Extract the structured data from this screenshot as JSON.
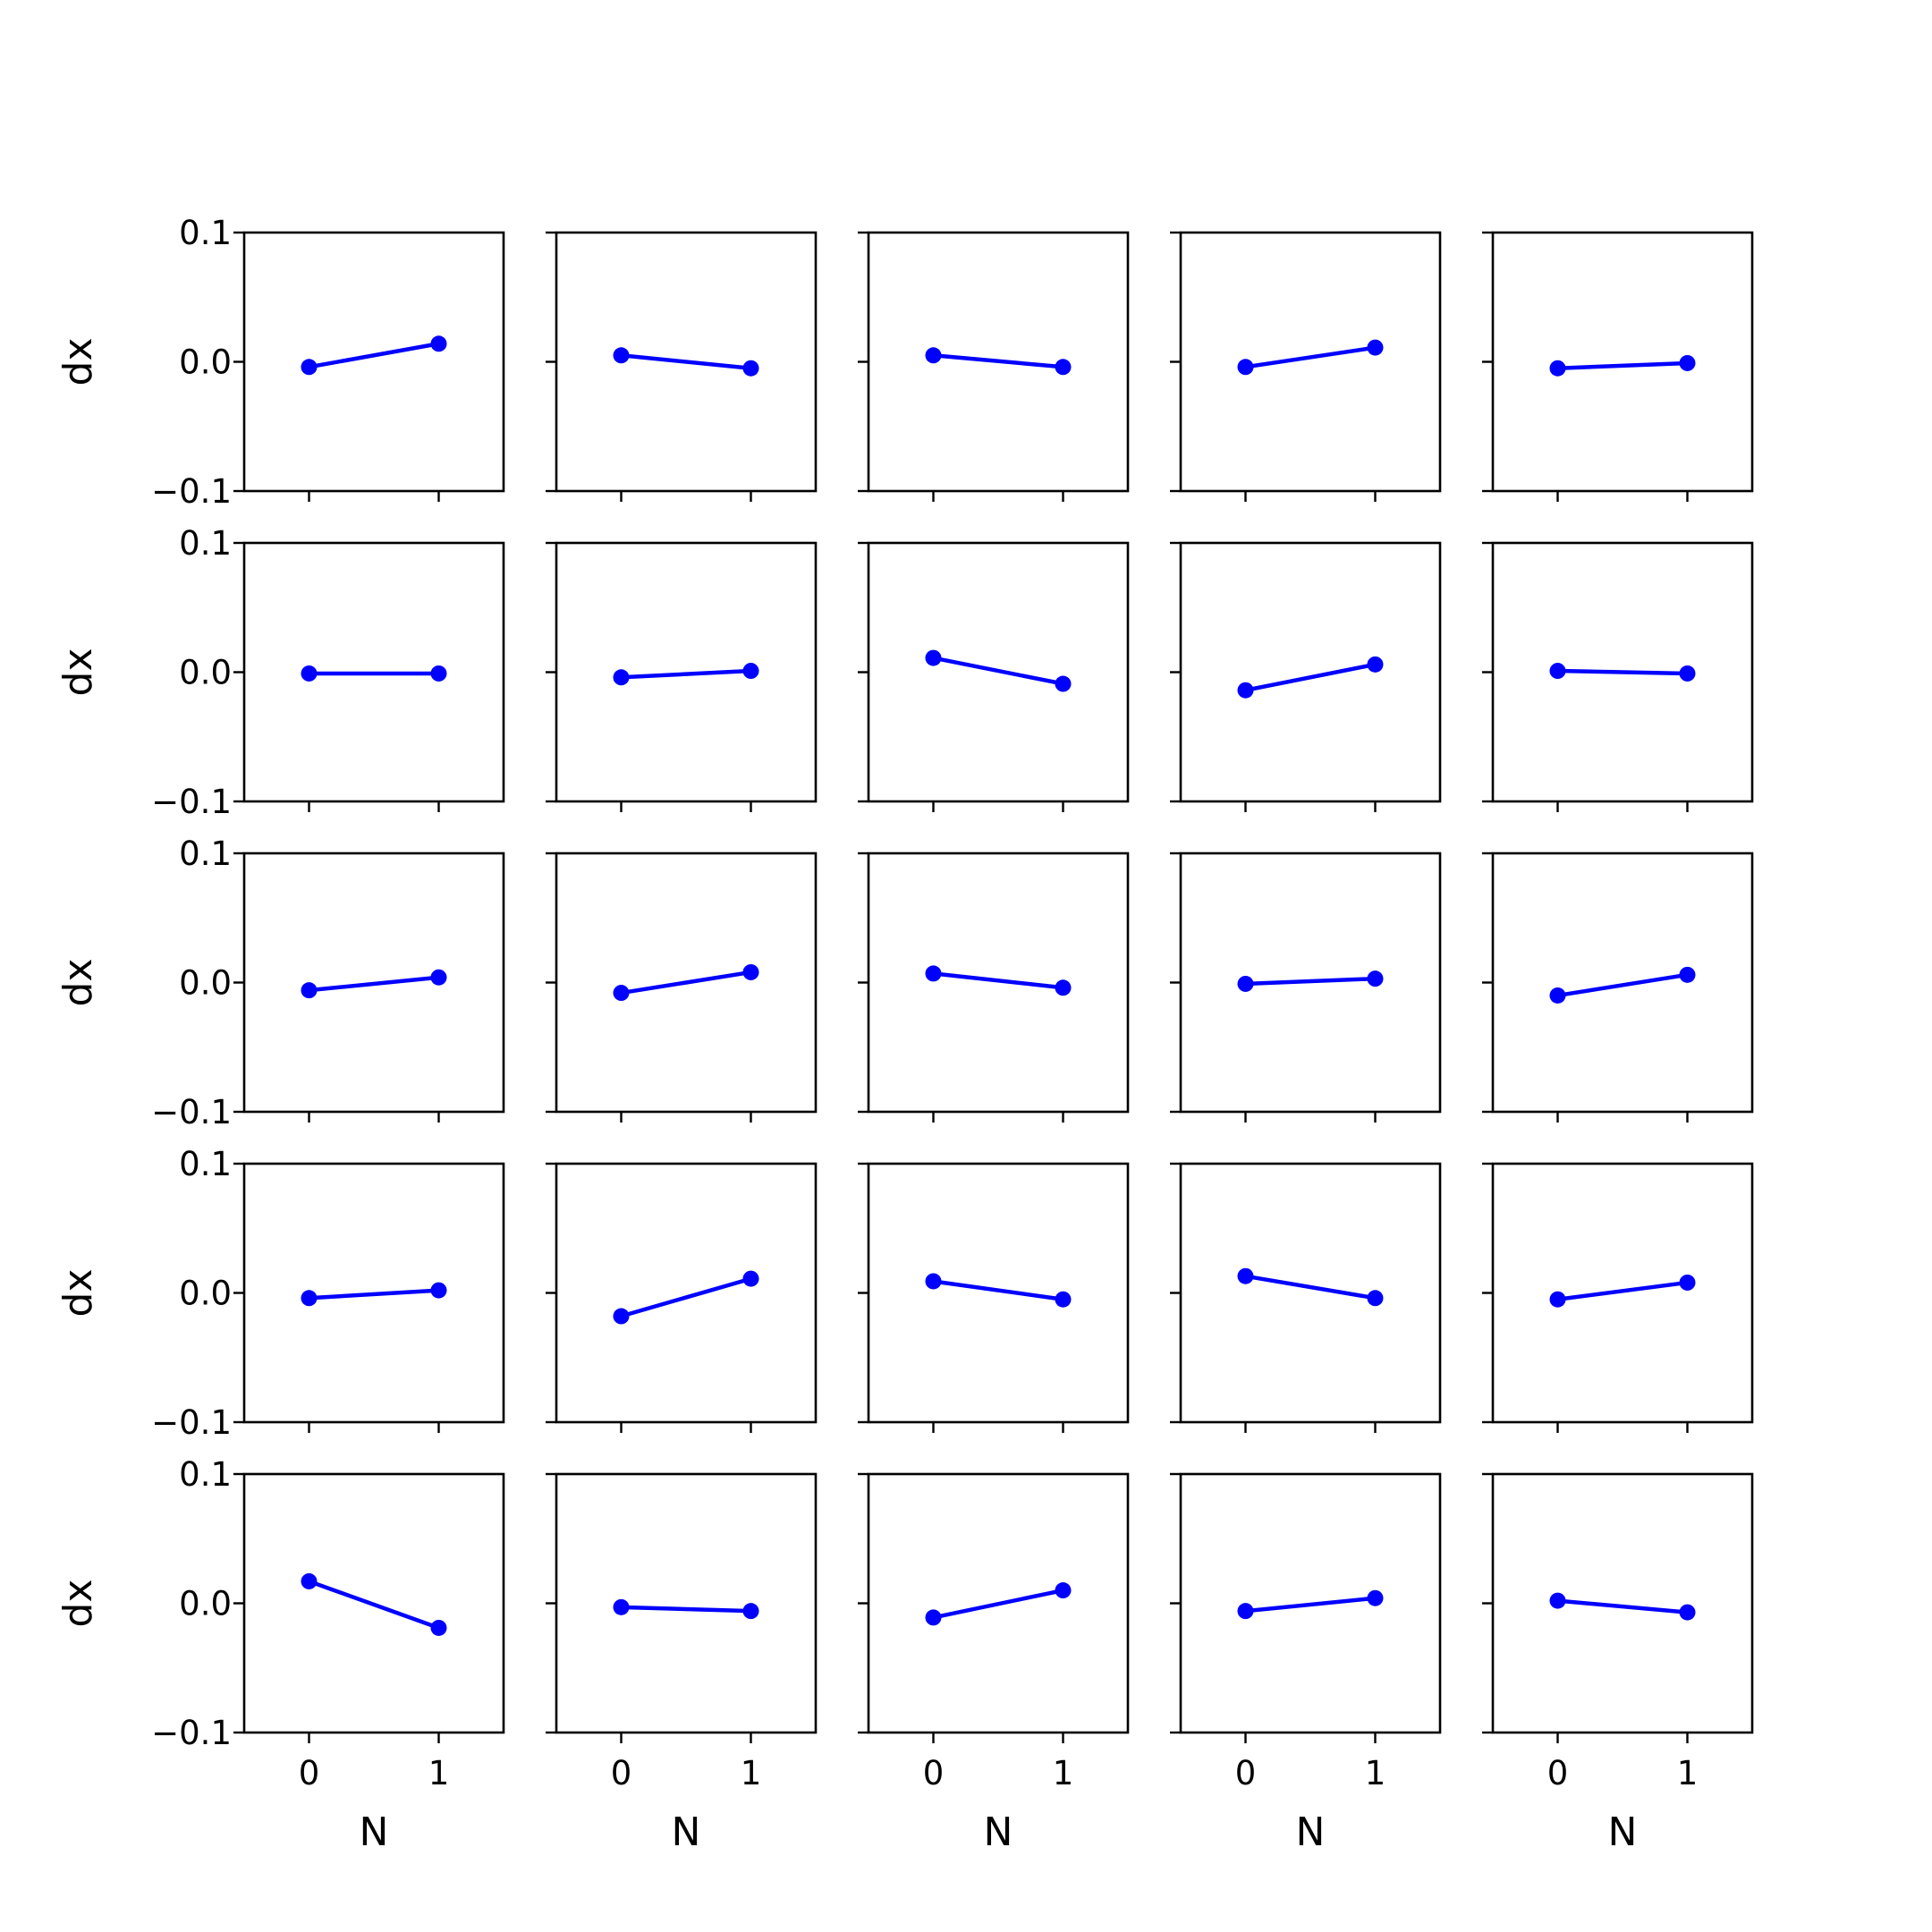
{
  "chart_data": {
    "type": "line",
    "layout": "5x5 grid of small-multiple line plots",
    "series_color": "#0000ff",
    "marker": "circle",
    "grid": false,
    "legend": "none",
    "shared_axes": {
      "xlabel": "N",
      "ylabel": "dx",
      "x": [
        0,
        1
      ],
      "x_tick_labels": [
        "0",
        "1"
      ],
      "ylim": [
        -0.1,
        0.1
      ],
      "y_tick_labels": [
        "0.1",
        "0.0",
        "−0.1"
      ]
    },
    "panels": [
      {
        "row": 1,
        "col": 1,
        "y": [
          -0.004,
          0.014
        ]
      },
      {
        "row": 1,
        "col": 2,
        "y": [
          0.005,
          -0.005
        ]
      },
      {
        "row": 1,
        "col": 3,
        "y": [
          0.005,
          -0.004
        ]
      },
      {
        "row": 1,
        "col": 4,
        "y": [
          -0.004,
          0.011
        ]
      },
      {
        "row": 1,
        "col": 5,
        "y": [
          -0.005,
          -0.001
        ]
      },
      {
        "row": 2,
        "col": 1,
        "y": [
          -0.001,
          -0.001
        ]
      },
      {
        "row": 2,
        "col": 2,
        "y": [
          -0.004,
          0.001
        ]
      },
      {
        "row": 2,
        "col": 3,
        "y": [
          0.011,
          -0.009
        ]
      },
      {
        "row": 2,
        "col": 4,
        "y": [
          -0.014,
          0.006
        ]
      },
      {
        "row": 2,
        "col": 5,
        "y": [
          0.001,
          -0.001
        ]
      },
      {
        "row": 3,
        "col": 1,
        "y": [
          -0.006,
          0.004
        ]
      },
      {
        "row": 3,
        "col": 2,
        "y": [
          -0.008,
          0.008
        ]
      },
      {
        "row": 3,
        "col": 3,
        "y": [
          0.007,
          -0.004
        ]
      },
      {
        "row": 3,
        "col": 4,
        "y": [
          -0.001,
          0.003
        ]
      },
      {
        "row": 3,
        "col": 5,
        "y": [
          -0.01,
          0.006
        ]
      },
      {
        "row": 4,
        "col": 1,
        "y": [
          -0.004,
          0.002
        ]
      },
      {
        "row": 4,
        "col": 2,
        "y": [
          -0.018,
          0.011
        ]
      },
      {
        "row": 4,
        "col": 3,
        "y": [
          0.009,
          -0.005
        ]
      },
      {
        "row": 4,
        "col": 4,
        "y": [
          0.013,
          -0.004
        ]
      },
      {
        "row": 4,
        "col": 5,
        "y": [
          -0.005,
          0.008
        ]
      },
      {
        "row": 5,
        "col": 1,
        "y": [
          0.017,
          -0.019
        ]
      },
      {
        "row": 5,
        "col": 2,
        "y": [
          -0.003,
          -0.006
        ]
      },
      {
        "row": 5,
        "col": 3,
        "y": [
          -0.011,
          0.01
        ]
      },
      {
        "row": 5,
        "col": 4,
        "y": [
          -0.006,
          0.004
        ]
      },
      {
        "row": 5,
        "col": 5,
        "y": [
          0.002,
          -0.007
        ]
      }
    ]
  }
}
